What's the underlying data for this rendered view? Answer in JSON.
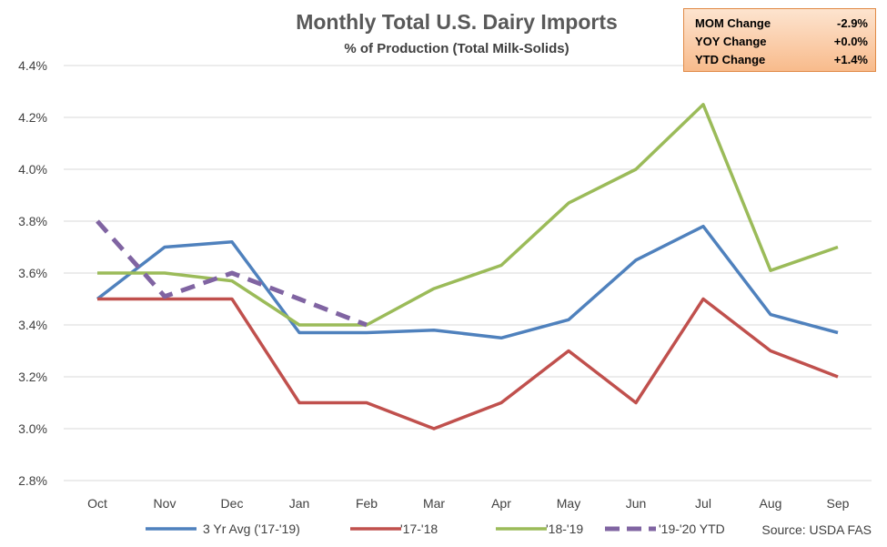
{
  "chart_data": {
    "type": "line",
    "title": "Monthly Total U.S. Dairy Imports",
    "subtitle": "% of Production  (Total Milk-Solids)",
    "categories": [
      "Oct",
      "Nov",
      "Dec",
      "Jan",
      "Feb",
      "Mar",
      "Apr",
      "May",
      "Jun",
      "Jul",
      "Aug",
      "Sep"
    ],
    "ylim": [
      2.8,
      4.4
    ],
    "yticks": [
      "2.8%",
      "3.0%",
      "3.2%",
      "3.4%",
      "3.6%",
      "3.8%",
      "4.0%",
      "4.2%",
      "4.4%"
    ],
    "grid": true,
    "legend_position": "bottom",
    "series": [
      {
        "name": "3 Yr Avg ('17-'19)",
        "color": "#4f81bd",
        "dashed": false,
        "values": [
          3.5,
          3.7,
          3.72,
          3.37,
          3.37,
          3.38,
          3.35,
          3.42,
          3.65,
          3.78,
          3.44,
          3.37
        ]
      },
      {
        "name": "'17-'18",
        "color": "#c0504d",
        "dashed": false,
        "values": [
          3.5,
          3.5,
          3.5,
          3.1,
          3.1,
          3.0,
          3.1,
          3.3,
          3.1,
          3.5,
          3.3,
          3.2
        ]
      },
      {
        "name": "'18-'19",
        "color": "#9bbb59",
        "dashed": false,
        "values": [
          3.6,
          3.6,
          3.57,
          3.4,
          3.4,
          3.54,
          3.63,
          3.87,
          4.0,
          4.25,
          3.61,
          3.7
        ]
      },
      {
        "name": "'19-'20 YTD",
        "color": "#8064a2",
        "dashed": true,
        "values": [
          3.8,
          3.51,
          3.6,
          3.5,
          3.4,
          null,
          null,
          null,
          null,
          null,
          null,
          null
        ]
      }
    ],
    "source": "Source: USDA FAS"
  },
  "stats_box": [
    {
      "label": "MOM Change",
      "value": "-2.9%"
    },
    {
      "label": "YOY Change",
      "value": "+0.0%"
    },
    {
      "label": "YTD Change",
      "value": "+1.4%"
    }
  ]
}
